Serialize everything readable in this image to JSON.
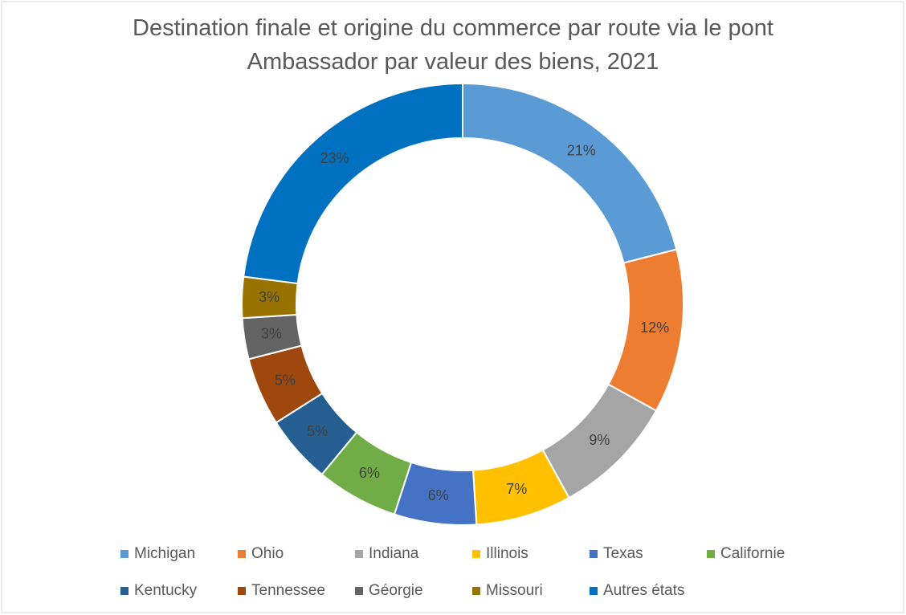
{
  "chart_data": {
    "type": "donut",
    "title": "Destination finale et origine du commerce par route via le pont Ambassador par valeur des biens, 2021",
    "categories": [
      "Michigan",
      "Ohio",
      "Indiana",
      "Illinois",
      "Texas",
      "Californie",
      "Kentucky",
      "Tennessee",
      "Géorgie",
      "Missouri",
      "Autres états"
    ],
    "values": [
      21,
      12,
      9,
      7,
      6,
      6,
      5,
      5,
      3,
      3,
      23
    ],
    "value_labels": [
      "21%",
      "12%",
      "9%",
      "7%",
      "6%",
      "6%",
      "5%",
      "5%",
      "3%",
      "3%",
      "23%"
    ],
    "colors": [
      "#5b9bd5",
      "#ed7d31",
      "#a5a5a5",
      "#ffc000",
      "#4472c4",
      "#70ad47",
      "#255e91",
      "#9e480e",
      "#636363",
      "#997300",
      "#0070c0"
    ],
    "legend": "bottom"
  }
}
